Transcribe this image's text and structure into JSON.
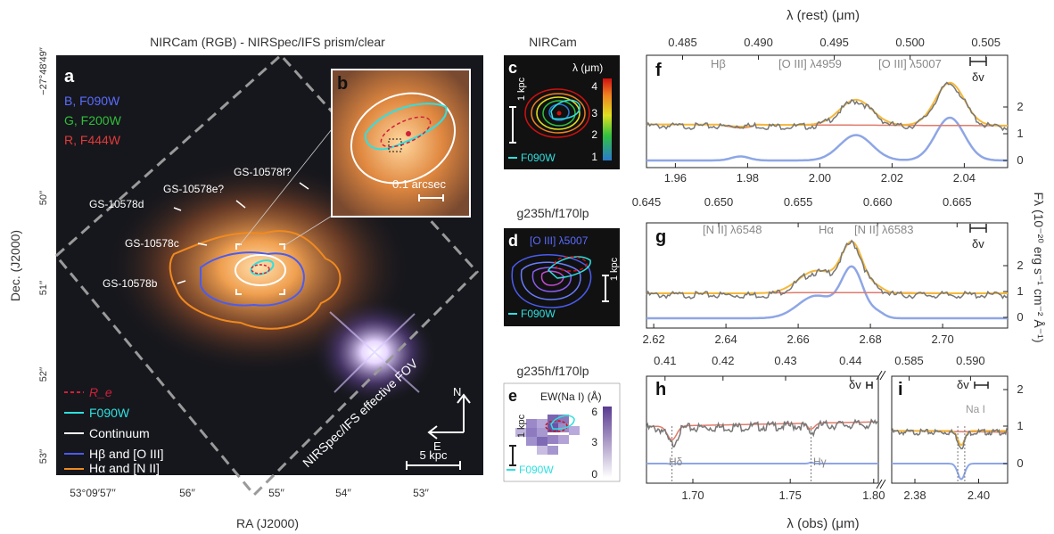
{
  "panel_a": {
    "title": "NIRCam (RGB) - NIRSpec/IFS prism/clear",
    "label": "a",
    "filters": [
      {
        "text": "B, F090W",
        "color": "#5a6cff"
      },
      {
        "text": "G, F200W",
        "color": "#2fbf3a"
      },
      {
        "text": "R, F444W",
        "color": "#e23a3a"
      }
    ],
    "sources": [
      "GS-10578f?",
      "GS-10578e?",
      "GS-10578d",
      "GS-10578c",
      "GS-10578b"
    ],
    "fov_label": "NIRSpec/IFS effective FOV",
    "legend": [
      {
        "text": "R_e",
        "color": "#d0203a"
      },
      {
        "text": "F090W",
        "color": "#2fe0e0"
      },
      {
        "text": "Continuum",
        "color": "#ffffff"
      },
      {
        "text": "Hβ and [O III]",
        "color": "#4a5cf0"
      },
      {
        "text": "Hα and [N II]",
        "color": "#f08a20"
      }
    ],
    "compass": {
      "n": "N",
      "e": "E"
    },
    "scale_bar": "5 kpc",
    "ylabel": "Dec. (J2000)",
    "xlabel": "RA (J2000)",
    "yticks": [
      "−27°48′49′′",
      "50′′",
      "51′′",
      "52′′",
      "53′′"
    ],
    "xticks": [
      "53°09′57′′",
      "56′′",
      "55′′",
      "54′′",
      "53′′"
    ]
  },
  "panel_b": {
    "label": "b",
    "scale": "0.1 arcsec"
  },
  "panel_c": {
    "title": "NIRCam",
    "label": "c",
    "cbar_title": "λ (μm)",
    "cbar_ticks": [
      "4",
      "3",
      "2",
      "1"
    ],
    "scale": "1 kpc",
    "psf": "F090W"
  },
  "panel_d": {
    "title": "g235h/f170lp",
    "label": "d",
    "line": "[O III] λ5007",
    "scale": "1 kpc",
    "psf": "F090W"
  },
  "panel_e": {
    "title": "g235h/f170lp",
    "label": "e",
    "cbar_title": "EW(Na I) (Å)",
    "cbar_ticks": [
      "6",
      "3",
      "0"
    ],
    "scale": "1 kpc",
    "psf": "F090W"
  },
  "top_axis_title": "λ (rest) (μm)",
  "bottom_axis_title": "λ (obs) (μm)",
  "right_axis_title": "Fλ (10⁻²⁰ erg s⁻¹ cm⁻² Å⁻¹)",
  "dv": "δv",
  "chart_data": [
    {
      "type": "line",
      "panel": "f",
      "top_ticks": [
        "0.485",
        "0.490",
        "0.495",
        "0.500",
        "0.505"
      ],
      "x_ticks": [
        "1.96",
        "1.98",
        "2.00",
        "2.02",
        "2.04"
      ],
      "y_ticks": [
        "2",
        "1",
        "0"
      ],
      "xlim": [
        1.952,
        2.052
      ],
      "ylim": [
        -0.1,
        3.4
      ],
      "lines": [
        "Hβ",
        "[O III] λ4959",
        "[O III] λ5007"
      ],
      "series": [
        {
          "name": "data",
          "color": "#777777"
        },
        {
          "name": "model",
          "color": "#f5b83a"
        },
        {
          "name": "continuum",
          "color": "#e07a6a"
        },
        {
          "name": "components",
          "color": "#8ea6e6"
        }
      ]
    },
    {
      "type": "line",
      "panel": "g",
      "top_ticks": [
        "0.645",
        "0.650",
        "0.655",
        "0.660",
        "0.665"
      ],
      "x_ticks": [
        "2.62",
        "2.64",
        "2.66",
        "2.68",
        "2.70"
      ],
      "y_ticks": [
        "2",
        "1",
        "0"
      ],
      "xlim": [
        2.618,
        2.718
      ],
      "ylim": [
        -0.1,
        3.2
      ],
      "lines": [
        "[N II] λ6548",
        "Hα",
        "[N II] λ6583"
      ]
    },
    {
      "type": "line",
      "panel": "h",
      "top_ticks": [
        "0.41",
        "0.42",
        "0.43",
        "0.44"
      ],
      "x_ticks": [
        "1.70",
        "1.75",
        "1.80"
      ],
      "lines": [
        "Hδ",
        "Hγ"
      ]
    },
    {
      "type": "line",
      "panel": "i",
      "top_ticks": [
        "0.585",
        "0.590"
      ],
      "x_ticks": [
        "2.38",
        "2.40"
      ],
      "y_ticks": [
        "2",
        "1",
        "0"
      ],
      "lines": [
        "Na I"
      ]
    }
  ]
}
